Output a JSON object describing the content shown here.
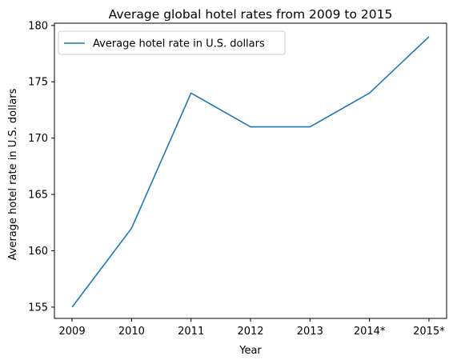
{
  "chart_data": {
    "type": "line",
    "title": "Average global hotel rates from 2009 to 2015",
    "xlabel": "Year",
    "ylabel": "Average hotel rate in U.S. dollars",
    "categories": [
      "2009",
      "2010",
      "2011",
      "2012",
      "2013",
      "2014*",
      "2015*"
    ],
    "series": [
      {
        "name": "Average hotel rate in U.S. dollars",
        "values": [
          155,
          162,
          174,
          171,
          171,
          174,
          179
        ],
        "color": "#1f77b4"
      }
    ],
    "ylim": [
      154,
      180.2
    ],
    "yticks": [
      155,
      160,
      165,
      170,
      175,
      180
    ],
    "grid": false,
    "legend_position": "top-left"
  }
}
